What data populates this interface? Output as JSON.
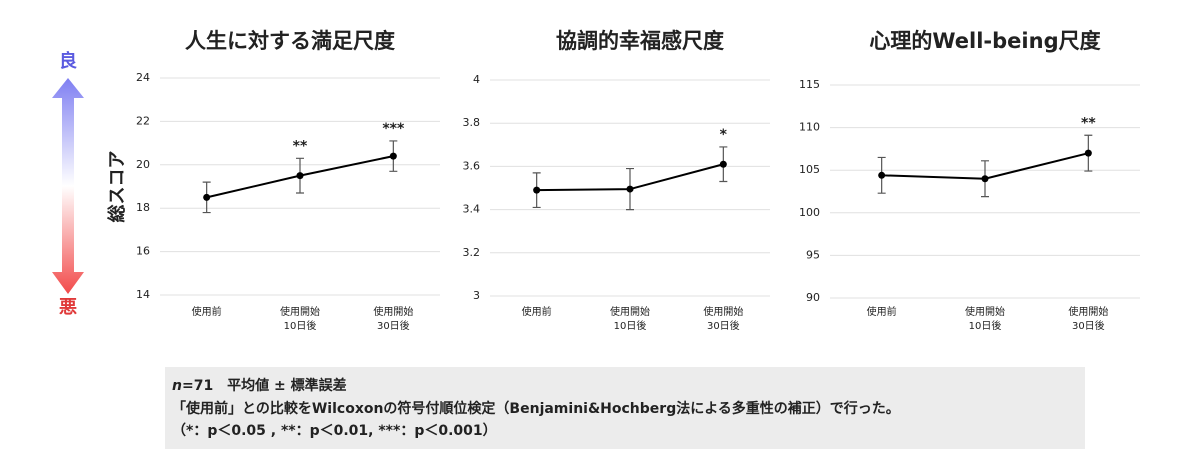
{
  "chart_data": [
    {
      "type": "line",
      "title": "人生に対する満足尺度",
      "ylabel": "総スコア",
      "categories": [
        [
          "使用前"
        ],
        [
          "使用開始",
          "10日後"
        ],
        [
          "使用開始",
          "30日後"
        ]
      ],
      "values": [
        18.5,
        19.5,
        20.4
      ],
      "errors": [
        0.7,
        0.8,
        0.7
      ],
      "annotations": [
        null,
        "**",
        "***"
      ],
      "color": "#000000",
      "ylim": [
        14,
        24
      ],
      "yticks": [
        14,
        16,
        18,
        20,
        22,
        24
      ],
      "grid": true
    },
    {
      "type": "line",
      "title": "協調的幸福感尺度",
      "categories": [
        [
          "使用前"
        ],
        [
          "使用開始",
          "10日後"
        ],
        [
          "使用開始",
          "30日後"
        ]
      ],
      "values": [
        3.49,
        3.495,
        3.61
      ],
      "errors": [
        0.08,
        0.095,
        0.08
      ],
      "annotations": [
        null,
        null,
        "*"
      ],
      "color": "#000000",
      "ylim": [
        3,
        4
      ],
      "yticks": [
        3,
        3.2,
        3.4,
        3.6,
        3.8,
        4
      ],
      "grid": true
    },
    {
      "type": "line",
      "title": "心理的Well-being尺度",
      "categories": [
        [
          "使用前"
        ],
        [
          "使用開始",
          "10日後"
        ],
        [
          "使用開始",
          "30日後"
        ]
      ],
      "values": [
        104.4,
        104.0,
        107.0
      ],
      "errors": [
        2.1,
        2.1,
        2.1
      ],
      "annotations": [
        null,
        null,
        "**"
      ],
      "color": "#000000",
      "ylim": [
        90,
        115
      ],
      "yticks": [
        90,
        95,
        100,
        105,
        110,
        115
      ],
      "grid": true
    }
  ],
  "arrow": {
    "good": "良",
    "bad": "悪"
  },
  "note": {
    "n": "n",
    "line1": "=71　平均値 ± 標準誤差",
    "line2": "「使用前」との比較をWilcoxonの符号付順位検定（Benjamini&Hochberg法による多重性の補正）で行った。",
    "line3": "（*：p＜0.05 , **：p＜0.01, ***：p＜0.001）"
  }
}
